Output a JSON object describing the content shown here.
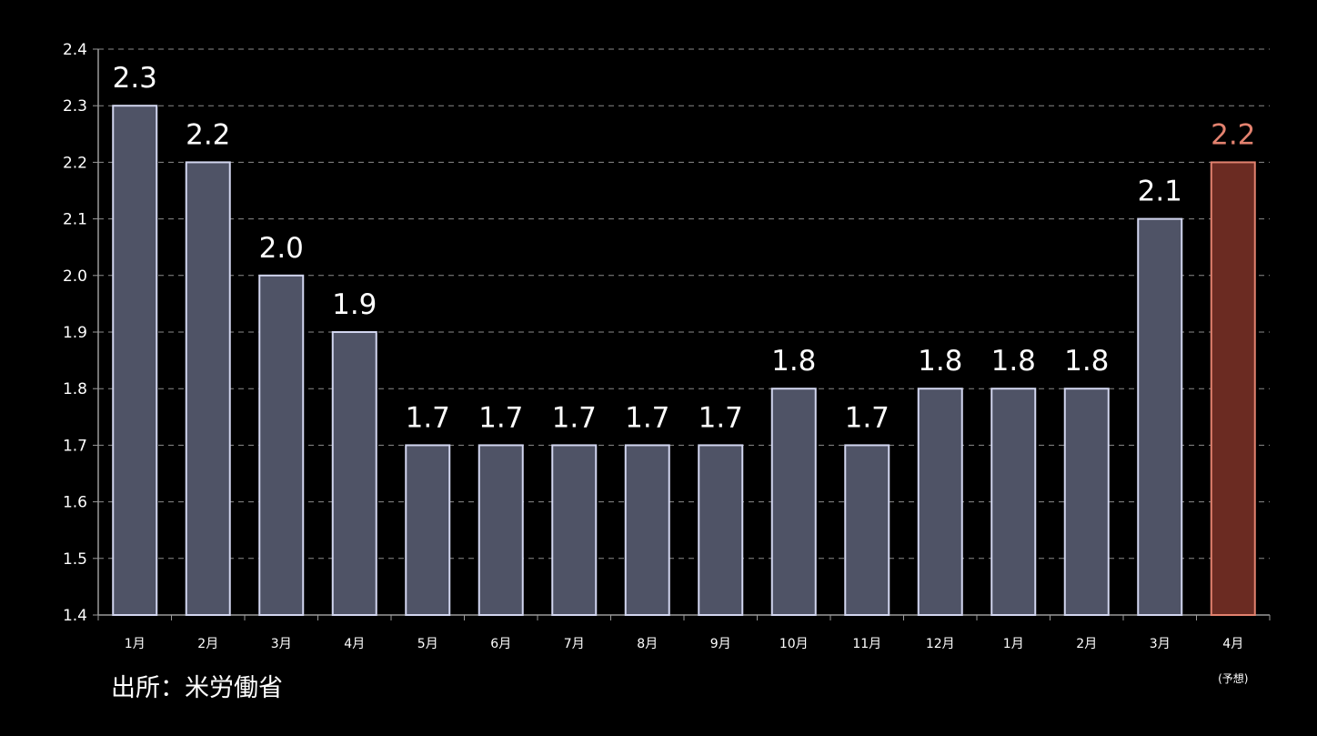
{
  "chart_data": {
    "type": "bar",
    "categories": [
      "1月",
      "2月",
      "3月",
      "4月",
      "5月",
      "6月",
      "7月",
      "8月",
      "9月",
      "10月",
      "11月",
      "12月",
      "1月",
      "2月",
      "3月",
      "4月"
    ],
    "values": [
      2.3,
      2.2,
      2.0,
      1.9,
      1.7,
      1.7,
      1.7,
      1.7,
      1.7,
      1.8,
      1.7,
      1.8,
      1.8,
      1.8,
      2.1,
      2.2
    ],
    "data_labels": [
      "2.3",
      "2.2",
      "2.0",
      "1.9",
      "1.7",
      "1.7",
      "1.7",
      "1.7",
      "1.7",
      "1.8",
      "1.7",
      "1.8",
      "1.8",
      "1.8",
      "2.1",
      "2.2"
    ],
    "category_notes": [
      "",
      "",
      "",
      "",
      "",
      "",
      "",
      "",
      "",
      "",
      "",
      "",
      "",
      "",
      "",
      "(予想)"
    ],
    "highlight_index": 15,
    "ylim": [
      1.4,
      2.4
    ],
    "yticks": [
      "1.4",
      "1.5",
      "1.6",
      "1.7",
      "1.8",
      "1.9",
      "2.0",
      "2.1",
      "2.2",
      "2.3",
      "2.4"
    ],
    "grid": true,
    "legend": "none",
    "source": "出所：米労働省",
    "colors": {
      "background": "#000000",
      "bar_fill": "#4f5366",
      "bar_stroke": "#d2d6f0",
      "highlight_fill": "#6b2b22",
      "highlight_stroke": "#e3826f",
      "highlight_label": "#e3826f",
      "grid": "#8a8a8a",
      "axis": "#9a9a9a",
      "text": "#ffffff"
    }
  }
}
